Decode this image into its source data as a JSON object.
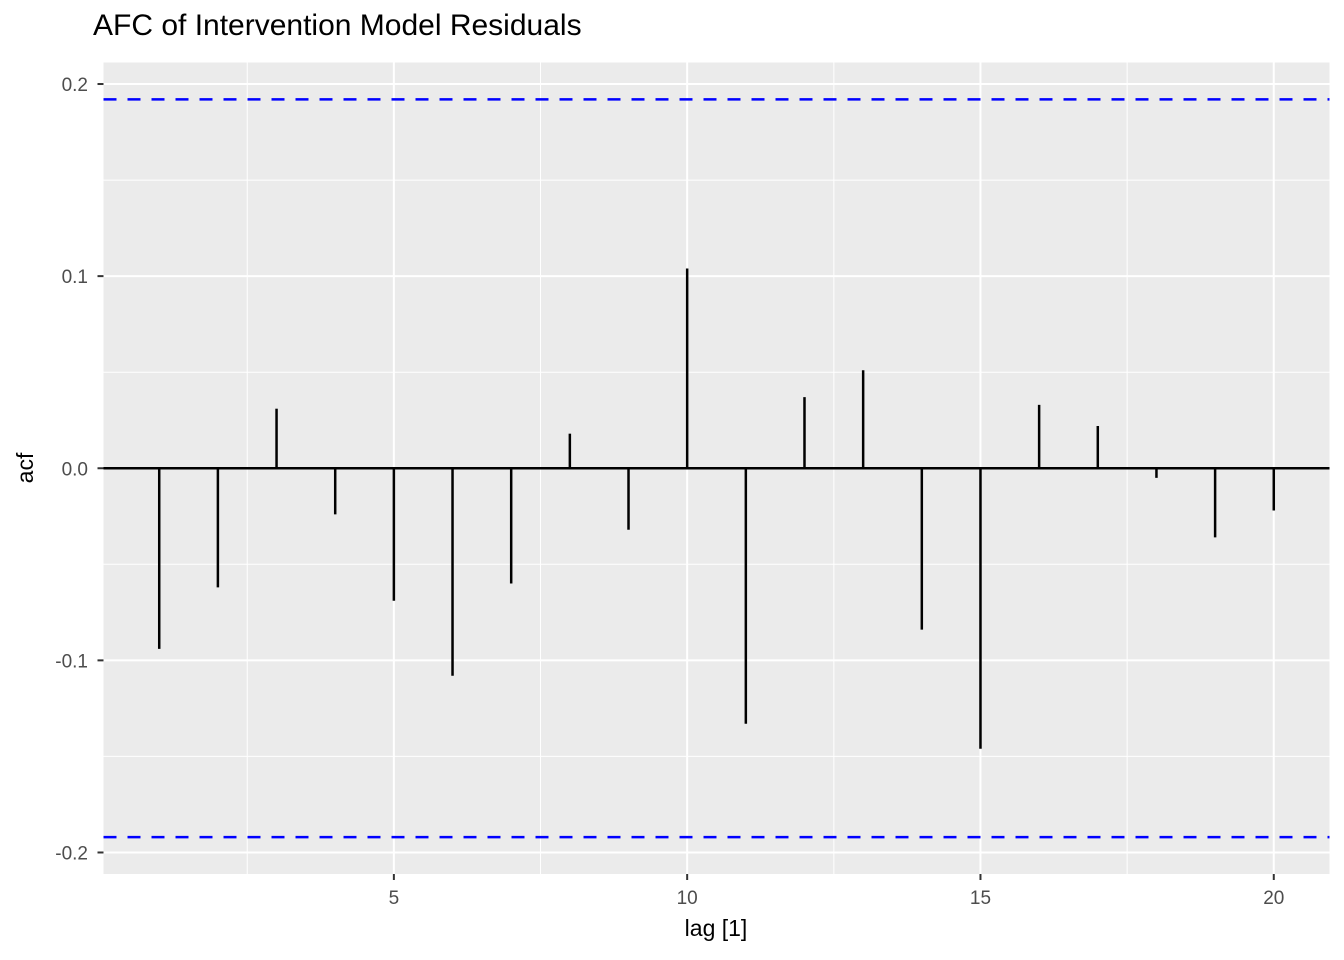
{
  "chart_data": {
    "type": "bar",
    "subtype": "acf-stem-plot",
    "title": "AFC of Intervention Model Residuals",
    "xlabel": "lag [1]",
    "ylabel": "acf",
    "x": [
      1,
      2,
      3,
      4,
      5,
      6,
      7,
      8,
      9,
      10,
      11,
      12,
      13,
      14,
      15,
      16,
      17,
      18,
      19,
      20
    ],
    "values": [
      -0.094,
      -0.062,
      0.031,
      -0.024,
      -0.069,
      -0.108,
      -0.06,
      0.018,
      -0.032,
      0.104,
      -0.133,
      0.037,
      0.051,
      -0.084,
      -0.146,
      0.033,
      0.022,
      -0.005,
      -0.036,
      -0.022
    ],
    "conf_band": 0.192,
    "conf_line_style": "dashed",
    "zero_line": 0.0,
    "xlim": [
      0.05,
      20.95
    ],
    "ylim": [
      -0.2112,
      0.2112
    ],
    "x_ticks": [
      5,
      10,
      15,
      20
    ],
    "x_tick_labels": [
      "5",
      "10",
      "15",
      "20"
    ],
    "y_ticks": [
      -0.2,
      -0.1,
      0.0,
      0.1,
      0.2
    ],
    "y_tick_labels": [
      "-0.2",
      "-0.1",
      "0.0",
      "0.1",
      "0.2"
    ],
    "x_minor_ticks": [
      2.5,
      7.5,
      12.5,
      17.5
    ],
    "y_minor_ticks": [
      -0.15,
      -0.05,
      0.05,
      0.15
    ],
    "grid": true,
    "legend": "none",
    "colors": {
      "stem": "#000000",
      "zero_line": "#000000",
      "conf": "#0000FF",
      "panel_bg": "#EBEBEB",
      "grid": "#FFFFFF",
      "tick_mark": "#333333",
      "tick_text": "#4D4D4D",
      "title_text": "#000000",
      "background": "#FFFFFF"
    }
  }
}
